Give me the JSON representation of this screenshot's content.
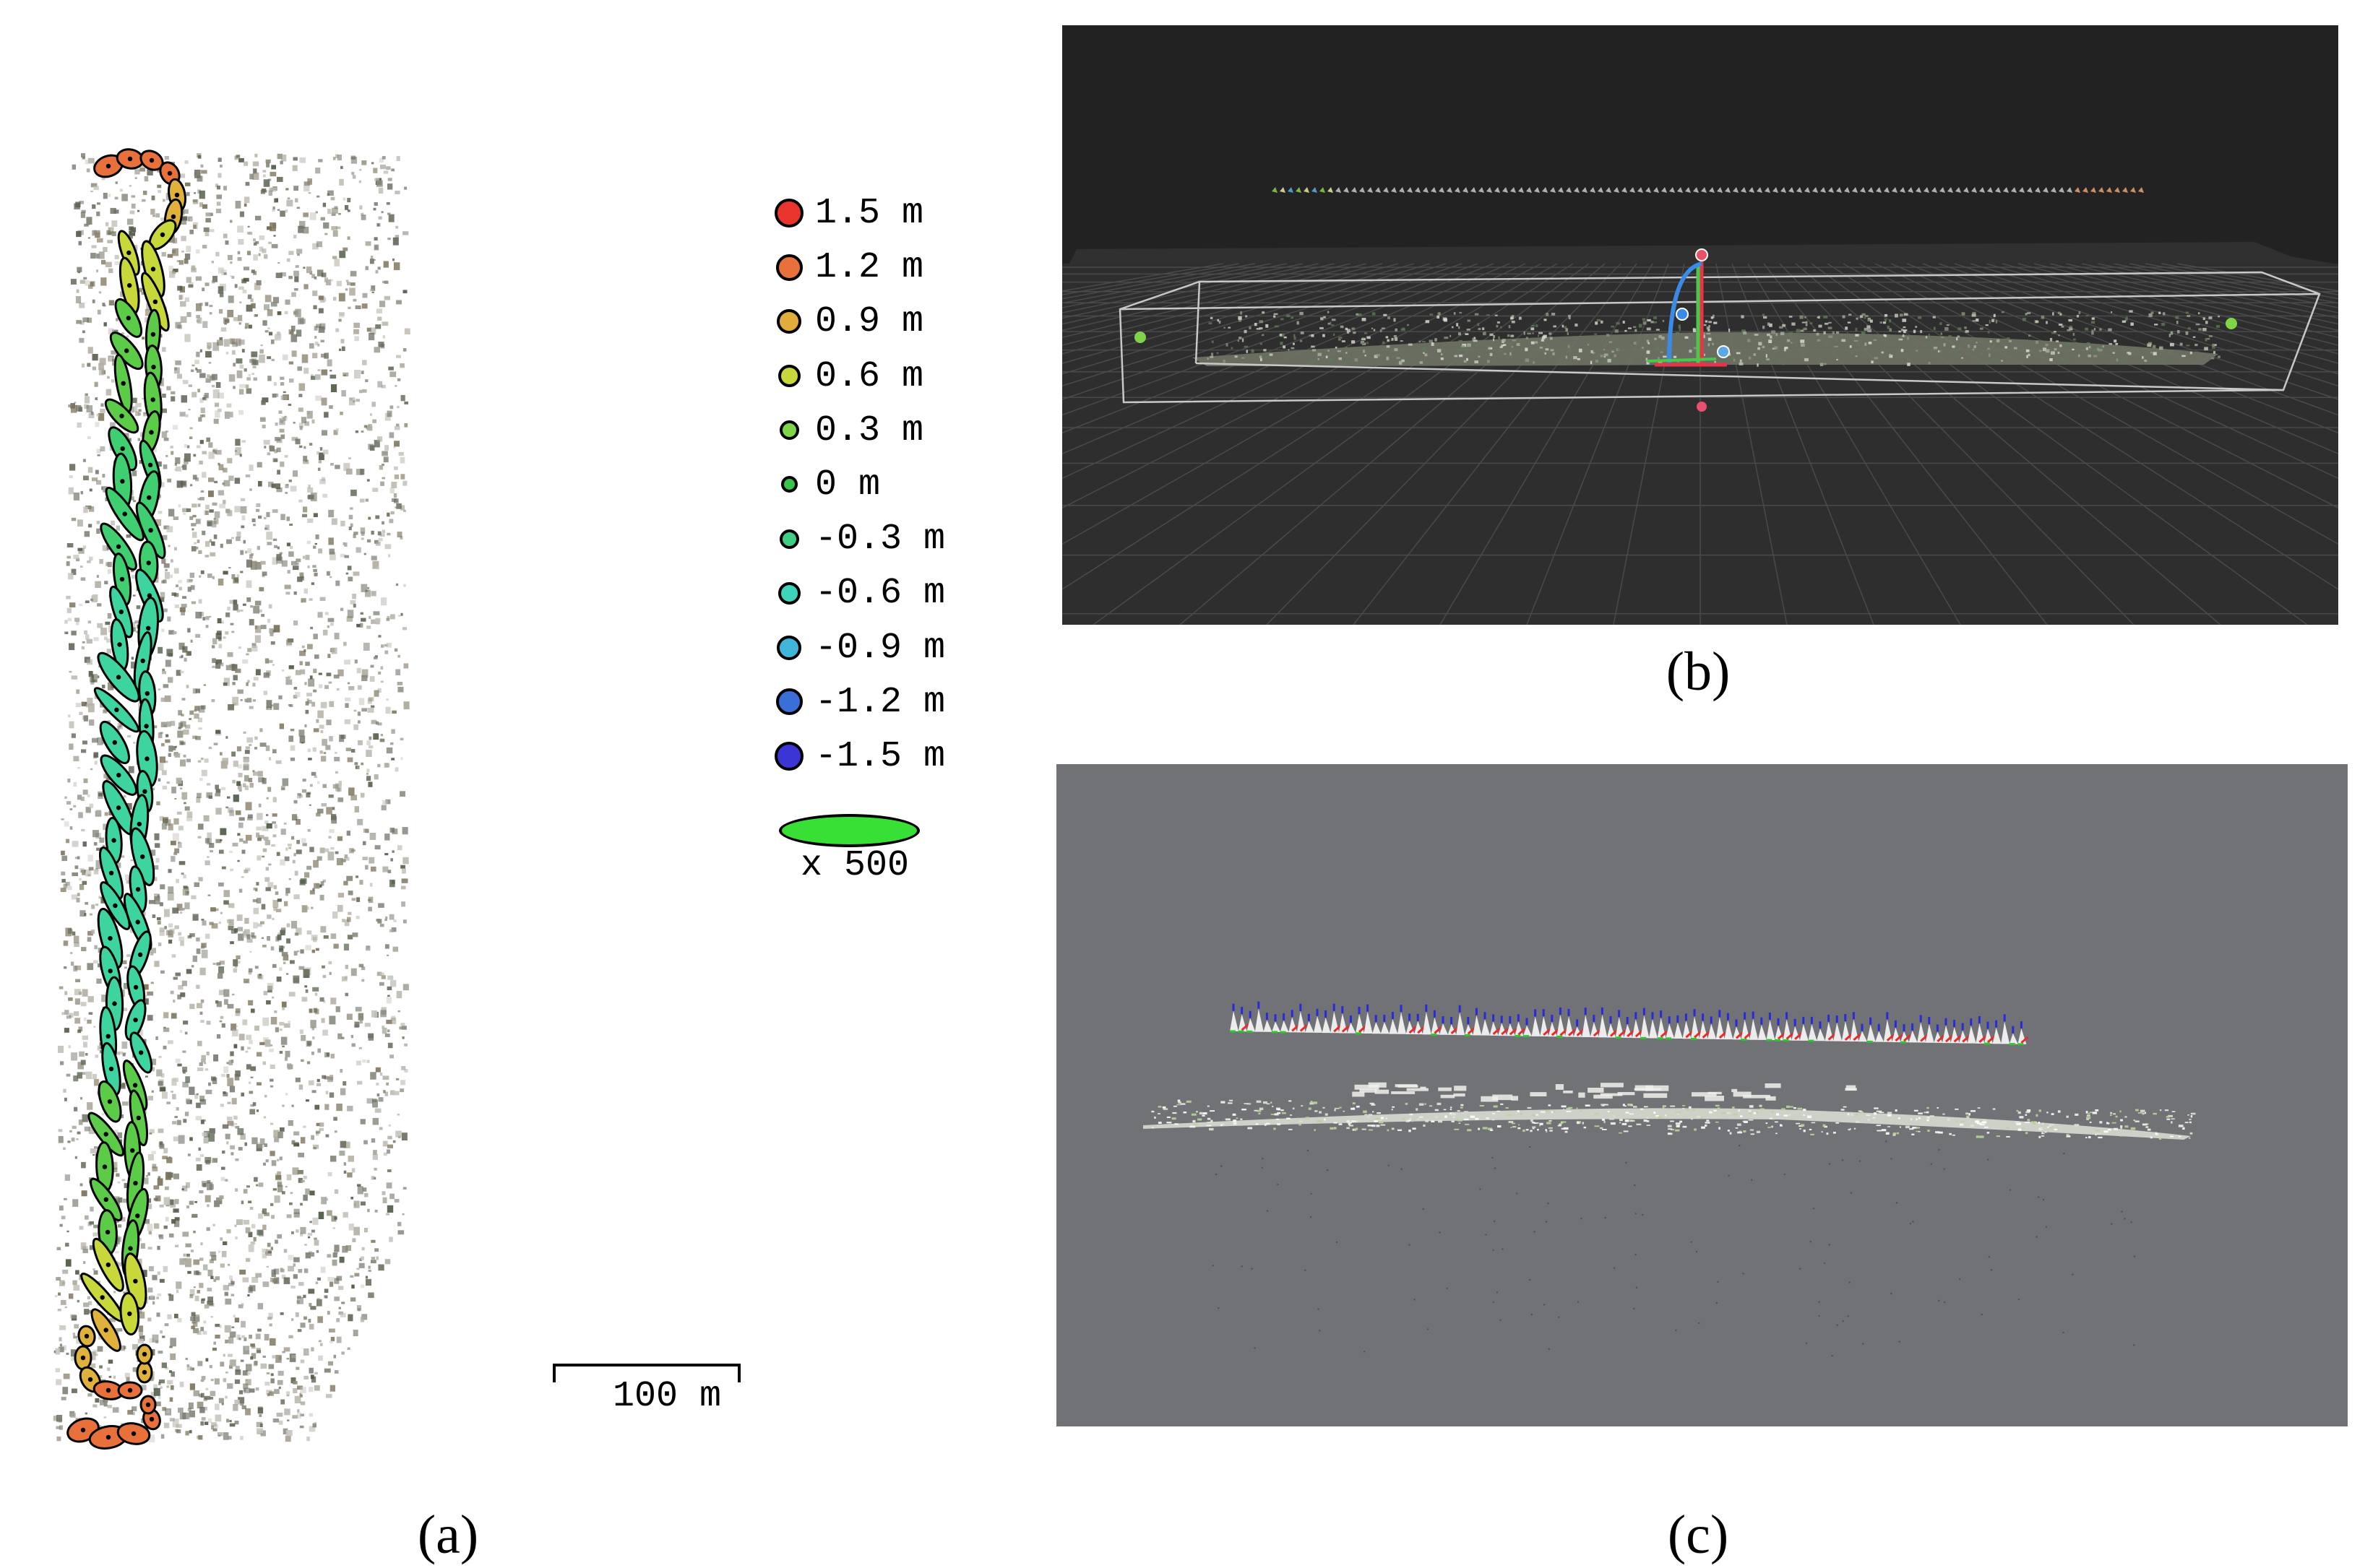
{
  "panel_a": {
    "label": "(a)",
    "legend": [
      {
        "text": "1.5 m",
        "color": "#e8342c",
        "size": 40
      },
      {
        "text": "1.2 m",
        "color": "#e8703a",
        "size": 37
      },
      {
        "text": "0.9 m",
        "color": "#e0ad3b",
        "size": 34
      },
      {
        "text": "0.6 m",
        "color": "#c8d83a",
        "size": 31
      },
      {
        "text": "0.3 m",
        "color": "#7fd44a",
        "size": 27
      },
      {
        "text": "0 m",
        "color": "#39c44a",
        "size": 23
      },
      {
        "text": "-0.3 m",
        "color": "#3fcf84",
        "size": 27
      },
      {
        "text": "-0.6 m",
        "color": "#3ed4b9",
        "size": 31
      },
      {
        "text": "-0.9 m",
        "color": "#3fb6d9",
        "size": 34
      },
      {
        "text": "-1.2 m",
        "color": "#3b6fd8",
        "size": 37
      },
      {
        "text": "-1.5 m",
        "color": "#3c35d6",
        "size": 40
      }
    ],
    "ellipse_scale_label": "x 500",
    "scale_bar_label": "100 m"
  },
  "panel_b": {
    "label": "(b)"
  },
  "panel_c": {
    "label": "(c)"
  },
  "colors": {
    "panel_b_bg": "#2b2b2b",
    "panel_c_bg": "#707276",
    "ellipse_orange": "#e8703a",
    "ellipse_yellow": "#d8cf3a",
    "ellipse_green": "#3fc85a",
    "ellipse_teal": "#3ed4a0"
  }
}
